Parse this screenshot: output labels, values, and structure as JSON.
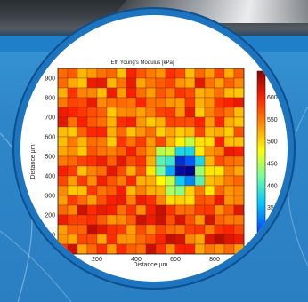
{
  "chart_data": {
    "type": "heatmap",
    "title": "Eff. Young's Modulus [kPa]",
    "xlabel": "Distance μm",
    "ylabel": "Distance μm",
    "xlim": [
      0,
      950
    ],
    "ylim": [
      0,
      950
    ],
    "x_ticks": [
      "200",
      "400",
      "600",
      "800"
    ],
    "x_tick_values": [
      200,
      400,
      600,
      800
    ],
    "y_ticks": [
      "900",
      "800",
      "700",
      "600",
      "500",
      "400",
      "300",
      "200",
      "100"
    ],
    "y_tick_values": [
      900,
      800,
      700,
      600,
      500,
      400,
      300,
      200,
      100
    ],
    "colorbar_ticks": [
      "650",
      "600",
      "550",
      "500",
      "450",
      "400",
      "350",
      "300",
      "250"
    ],
    "colorbar_range": [
      240,
      660
    ],
    "grid_size": 19,
    "cell_size_um": 50,
    "background_modulus": 560,
    "indentation": {
      "center_x": 640,
      "center_y": 450,
      "min_value": 255
    },
    "colormap": [
      "#00008f",
      "#0050ff",
      "#00c8ff",
      "#70ffa0",
      "#ffff00",
      "#ff8c00",
      "#ff2000",
      "#8b0000"
    ]
  }
}
